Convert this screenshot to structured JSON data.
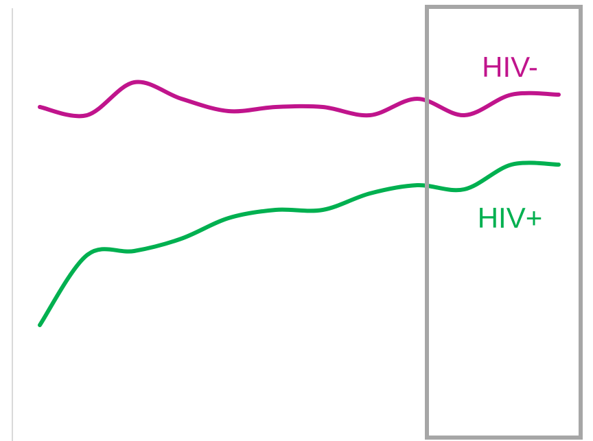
{
  "chart_data": {
    "type": "line",
    "title": "",
    "xlabel": "",
    "ylabel": "",
    "x": [
      0,
      1,
      2,
      3,
      4,
      5,
      6,
      7,
      8,
      9,
      10,
      11
    ],
    "xlim": [
      0,
      11
    ],
    "ylim": [
      0,
      100
    ],
    "grid": false,
    "legend": "inline-right",
    "series": [
      {
        "name": "HIV-",
        "color": "#c0148c",
        "values": [
          77,
          75,
          83,
          79,
          76,
          77,
          77,
          75,
          79,
          75,
          80,
          80
        ]
      },
      {
        "name": "HIV+",
        "color": "#00b050",
        "values": [
          24,
          41,
          42,
          45,
          50,
          52,
          52,
          56,
          58,
          57,
          63,
          63
        ]
      }
    ],
    "highlight": {
      "x_start": 8.4,
      "x_end": 11,
      "color": "#a6a6a6"
    }
  }
}
